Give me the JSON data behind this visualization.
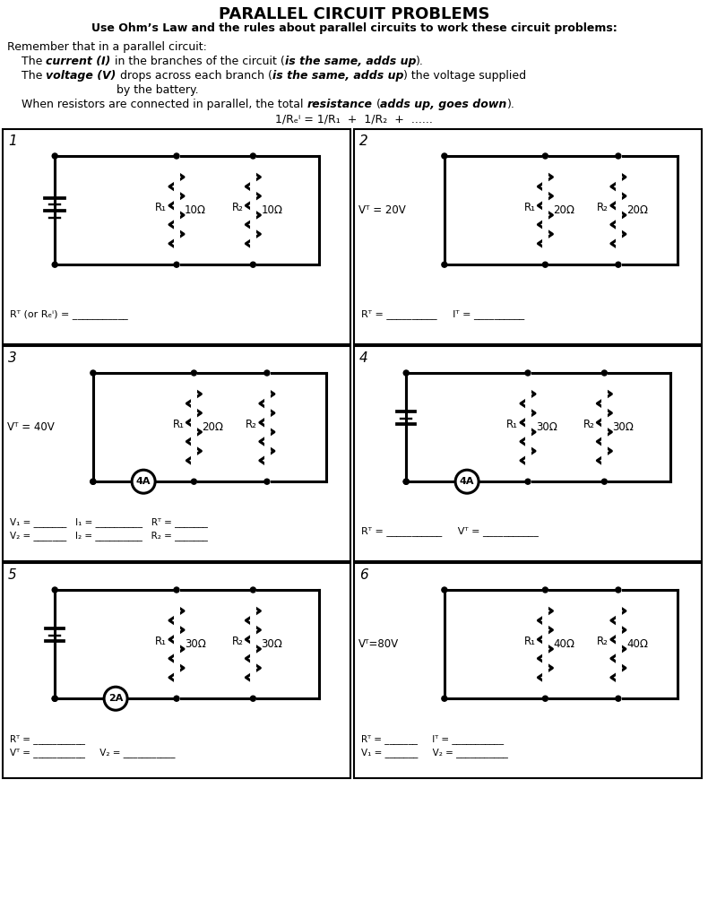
{
  "title": "PARALLEL CIRCUIT PROBLEMS",
  "bg_color": "#ffffff",
  "problems": [
    {
      "number": "1",
      "has_battery": true,
      "has_current_source": false,
      "voltage_label": null,
      "r1_val": "10Ω",
      "r2_val": "10Ω",
      "answer_lines": [
        "Rᵀ (or Rₑⁱ) = ___________"
      ]
    },
    {
      "number": "2",
      "has_battery": false,
      "has_current_source": false,
      "voltage_label": "Vᵀ = 20V",
      "r1_val": "20Ω",
      "r2_val": "20Ω",
      "answer_lines": [
        "Rᵀ = __________     Iᵀ = __________"
      ]
    },
    {
      "number": "3",
      "has_battery": false,
      "has_current_source": true,
      "current_val": "4A",
      "voltage_label": "Vᵀ = 40V",
      "r1_val": "20Ω",
      "r2_val": "",
      "answer_lines": [
        "V₁ = _______   I₁ = __________   Rᵀ = _______",
        "V₂ = _______   I₂ = __________   R₂ = _______"
      ]
    },
    {
      "number": "4",
      "has_battery": true,
      "has_current_source": true,
      "current_val": "4A",
      "voltage_label": null,
      "r1_val": "30Ω",
      "r2_val": "30Ω",
      "answer_lines": [
        "Rᵀ = ___________     Vᵀ = ___________"
      ]
    },
    {
      "number": "5",
      "has_battery": true,
      "has_current_source": true,
      "current_val": "2A",
      "voltage_label": null,
      "r1_val": "30Ω",
      "r2_val": "30Ω",
      "answer_lines": [
        "Rᵀ = ___________",
        "Vᵀ = ___________     V₂ = ___________"
      ]
    },
    {
      "number": "6",
      "has_battery": false,
      "has_current_source": false,
      "current_val": null,
      "voltage_label": "Vᵀ=80V",
      "r1_val": "40Ω",
      "r2_val": "40Ω",
      "answer_lines": [
        "Rᵀ = _______     Iᵀ = ___________",
        "V₁ = _______     V₂ = ___________"
      ]
    }
  ]
}
